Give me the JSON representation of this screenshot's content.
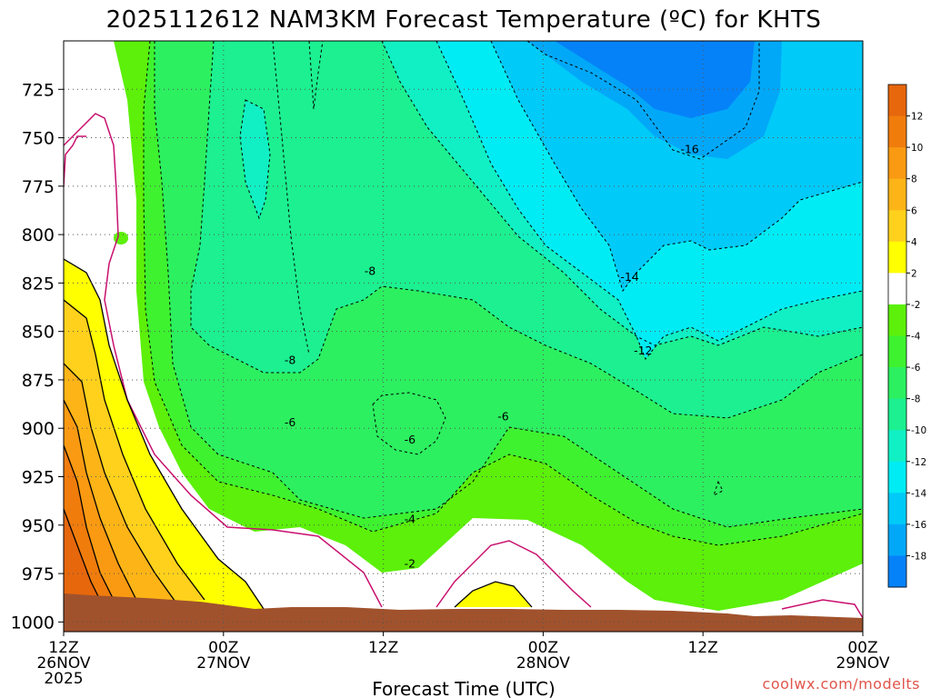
{
  "title": "2025112612 NAM3KM Forecast Temperature (ºC) for KHTS",
  "credit": "coolwx.com/modelts",
  "chart_data": {
    "type": "contour",
    "title": "2025112612 NAM3KM Forecast Temperature (ºC) for KHTS",
    "xlabel": "Forecast Time (UTC)",
    "ylabel": "",
    "x_range_hours": [
      0,
      60
    ],
    "ylim_hpa": [
      1005,
      700
    ],
    "y_ticks": [
      725,
      750,
      775,
      800,
      825,
      850,
      875,
      900,
      925,
      950,
      975,
      1000
    ],
    "x_ticks": [
      {
        "hour": 0,
        "line1": "12Z",
        "line2": "26NOV",
        "line3": "2025"
      },
      {
        "hour": 12,
        "line1": "00Z",
        "line2": "27NOV",
        "line3": ""
      },
      {
        "hour": 24,
        "line1": "12Z",
        "line2": "",
        "line3": ""
      },
      {
        "hour": 36,
        "line1": "00Z",
        "line2": "28NOV",
        "line3": ""
      },
      {
        "hour": 48,
        "line1": "12Z",
        "line2": "",
        "line3": ""
      },
      {
        "hour": 60,
        "line1": "00Z",
        "line2": "29NOV",
        "line3": ""
      }
    ],
    "grid": true,
    "contour_labels": [
      {
        "value": "-16",
        "hour": 47.0,
        "p": 756
      },
      {
        "value": "-14",
        "hour": 42.5,
        "p": 822
      },
      {
        "value": "-12",
        "hour": 43.5,
        "p": 860
      },
      {
        "value": "-8",
        "hour": 23.0,
        "p": 819
      },
      {
        "value": "-8",
        "hour": 17.0,
        "p": 865
      },
      {
        "value": "-6",
        "hour": 17.0,
        "p": 897
      },
      {
        "value": "-6",
        "hour": 26.0,
        "p": 906
      },
      {
        "value": "-6",
        "hour": 33.0,
        "p": 894
      },
      {
        "value": "-4",
        "hour": 26.0,
        "p": 947
      },
      {
        "value": "-2",
        "hour": 26.0,
        "p": 970
      }
    ],
    "colorbar": {
      "orientation": "vertical",
      "position": "right",
      "bins": [
        {
          "lo": "12",
          "hi": null,
          "color": "#e6670c"
        },
        {
          "lo": "10",
          "hi": "12",
          "color": "#f07c0c"
        },
        {
          "lo": "8",
          "hi": "10",
          "color": "#fa9a12"
        },
        {
          "lo": "6",
          "hi": "8",
          "color": "#fcb417"
        },
        {
          "lo": "4",
          "hi": "6",
          "color": "#ffd11c"
        },
        {
          "lo": "2",
          "hi": "4",
          "color": "#ffff00"
        },
        {
          "lo": "-2",
          "hi": "2",
          "color": "#ffffff"
        },
        {
          "lo": "-4",
          "hi": "-2",
          "color": "#5cf00a"
        },
        {
          "lo": "-6",
          "hi": "-4",
          "color": "#3ef230"
        },
        {
          "lo": "-8",
          "hi": "-6",
          "color": "#2cf060"
        },
        {
          "lo": "-10",
          "hi": "-8",
          "color": "#1cf090"
        },
        {
          "lo": "-12",
          "hi": "-10",
          "color": "#10f0c4"
        },
        {
          "lo": "-14",
          "hi": "-12",
          "color": "#00ecf4"
        },
        {
          "lo": "-16",
          "hi": "-14",
          "color": "#00caf8"
        },
        {
          "lo": "-18",
          "hi": "-16",
          "color": "#02a8f8"
        },
        {
          "lo": null,
          "hi": "-18",
          "color": "#0682f8"
        }
      ],
      "tick_labels": [
        "12",
        "10",
        "8",
        "6",
        "4",
        "2",
        "-2",
        "-4",
        "-6",
        "-8",
        "-10",
        "-12",
        "-14",
        "-16",
        "-18"
      ]
    },
    "terrain_color": "#a0522d"
  }
}
